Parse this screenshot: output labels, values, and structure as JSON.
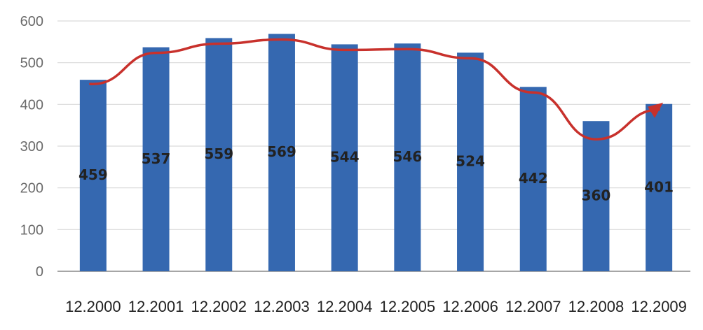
{
  "chart_data": {
    "type": "bar",
    "title": "",
    "xlabel": "",
    "ylabel": "",
    "ylim": [
      0,
      600
    ],
    "yticks": [
      0,
      100,
      200,
      300,
      400,
      500,
      600
    ],
    "grid": true,
    "legend": "none",
    "categories": [
      "12.2000",
      "12.2001",
      "12.2002",
      "12.2003",
      "12.2004",
      "12.2005",
      "12.2006",
      "12.2007",
      "12.2008",
      "12.2009"
    ],
    "series": [
      {
        "values": [
          459,
          537,
          559,
          569,
          544,
          546,
          524,
          442,
          360,
          401
        ]
      }
    ],
    "data_labels": [
      "459",
      "537",
      "559",
      "569",
      "544",
      "546",
      "524",
      "442",
      "360",
      "401"
    ],
    "annotation": {
      "type": "trend-arrow",
      "color": "#c8312c"
    }
  },
  "colors": {
    "bar": "#3568b0",
    "grid": "#d9d9d9",
    "axis": "#8c8c8c",
    "trend": "#c8312c"
  }
}
